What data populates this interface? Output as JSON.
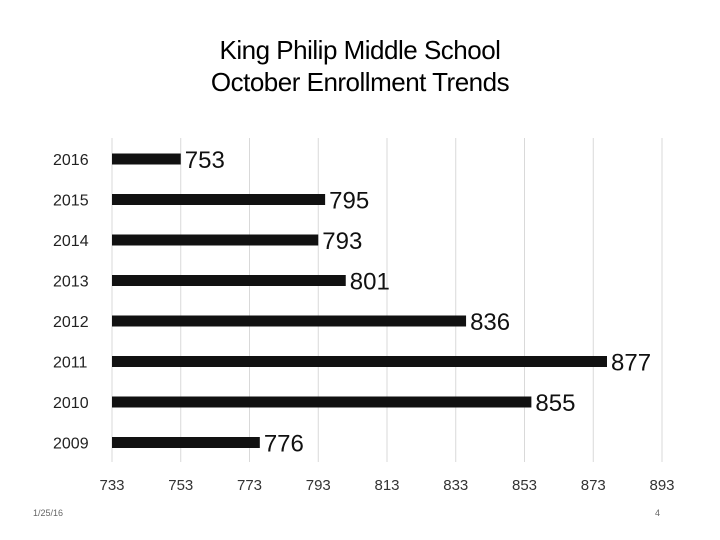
{
  "slide": {
    "title_line1": "King Philip Middle School",
    "title_line2": "October Enrollment Trends",
    "footer_date": "1/25/16",
    "page_number": "4"
  },
  "chart_data": {
    "type": "bar",
    "orientation": "horizontal",
    "categories": [
      "2016",
      "2015",
      "2014",
      "2013",
      "2012",
      "2011",
      "2010",
      "2009"
    ],
    "values": [
      753,
      795,
      793,
      801,
      836,
      877,
      855,
      776
    ],
    "data_labels": [
      "753",
      "795",
      "793",
      "801",
      "836",
      "877",
      "855",
      "776"
    ],
    "xlim": [
      733,
      893
    ],
    "xticks": [
      733,
      753,
      773,
      793,
      813,
      833,
      853,
      873,
      893
    ],
    "xtick_labels": [
      "733",
      "753",
      "773",
      "793",
      "813",
      "833",
      "853",
      "873",
      "893"
    ],
    "grid": "vertical",
    "legend": "none",
    "bar_color": "#111111",
    "grid_color": "#d9d9d9"
  }
}
